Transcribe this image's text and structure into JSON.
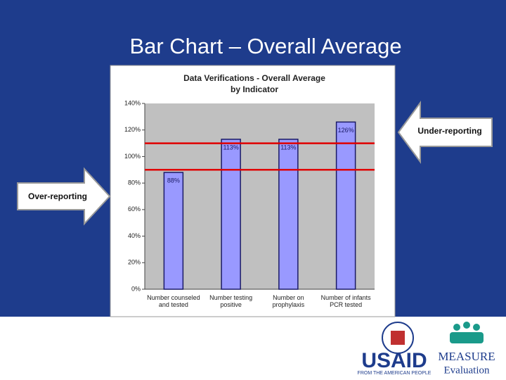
{
  "slide": {
    "title": "Bar Chart – Overall Average"
  },
  "annotations": {
    "under": "Under-reporting",
    "over": "Over-reporting"
  },
  "logos": {
    "usaid": "USAID",
    "usaid_tagline": "FROM THE AMERICAN PEOPLE",
    "measure": "MEASURE",
    "evaluation": "Evaluation"
  },
  "chart_data": {
    "type": "bar",
    "title": [
      "Data Verifications - Overall Average",
      "by Indicator"
    ],
    "categories": [
      "Number counseled and tested",
      "Number testing positive",
      "Number on prophylaxis",
      "Number of infants PCR tested"
    ],
    "values": [
      88,
      113,
      113,
      126
    ],
    "value_labels": [
      "88%",
      "113%",
      "113%",
      "126%"
    ],
    "color": "#9999ff",
    "ylim": [
      0,
      140
    ],
    "yticks": [
      {
        "value": 0,
        "label": "0%"
      },
      {
        "value": 20,
        "label": "20%"
      },
      {
        "value": 40,
        "label": "40%"
      },
      {
        "value": 60,
        "label": "60%"
      },
      {
        "value": 80,
        "label": "80%"
      },
      {
        "value": 100,
        "label": "100%"
      },
      {
        "value": 120,
        "label": "120%"
      },
      {
        "value": 140,
        "label": "140%"
      }
    ],
    "grid": false,
    "reference_lines": [
      {
        "value": 110,
        "color": "#e00000"
      },
      {
        "value": 90,
        "color": "#e00000"
      }
    ]
  }
}
